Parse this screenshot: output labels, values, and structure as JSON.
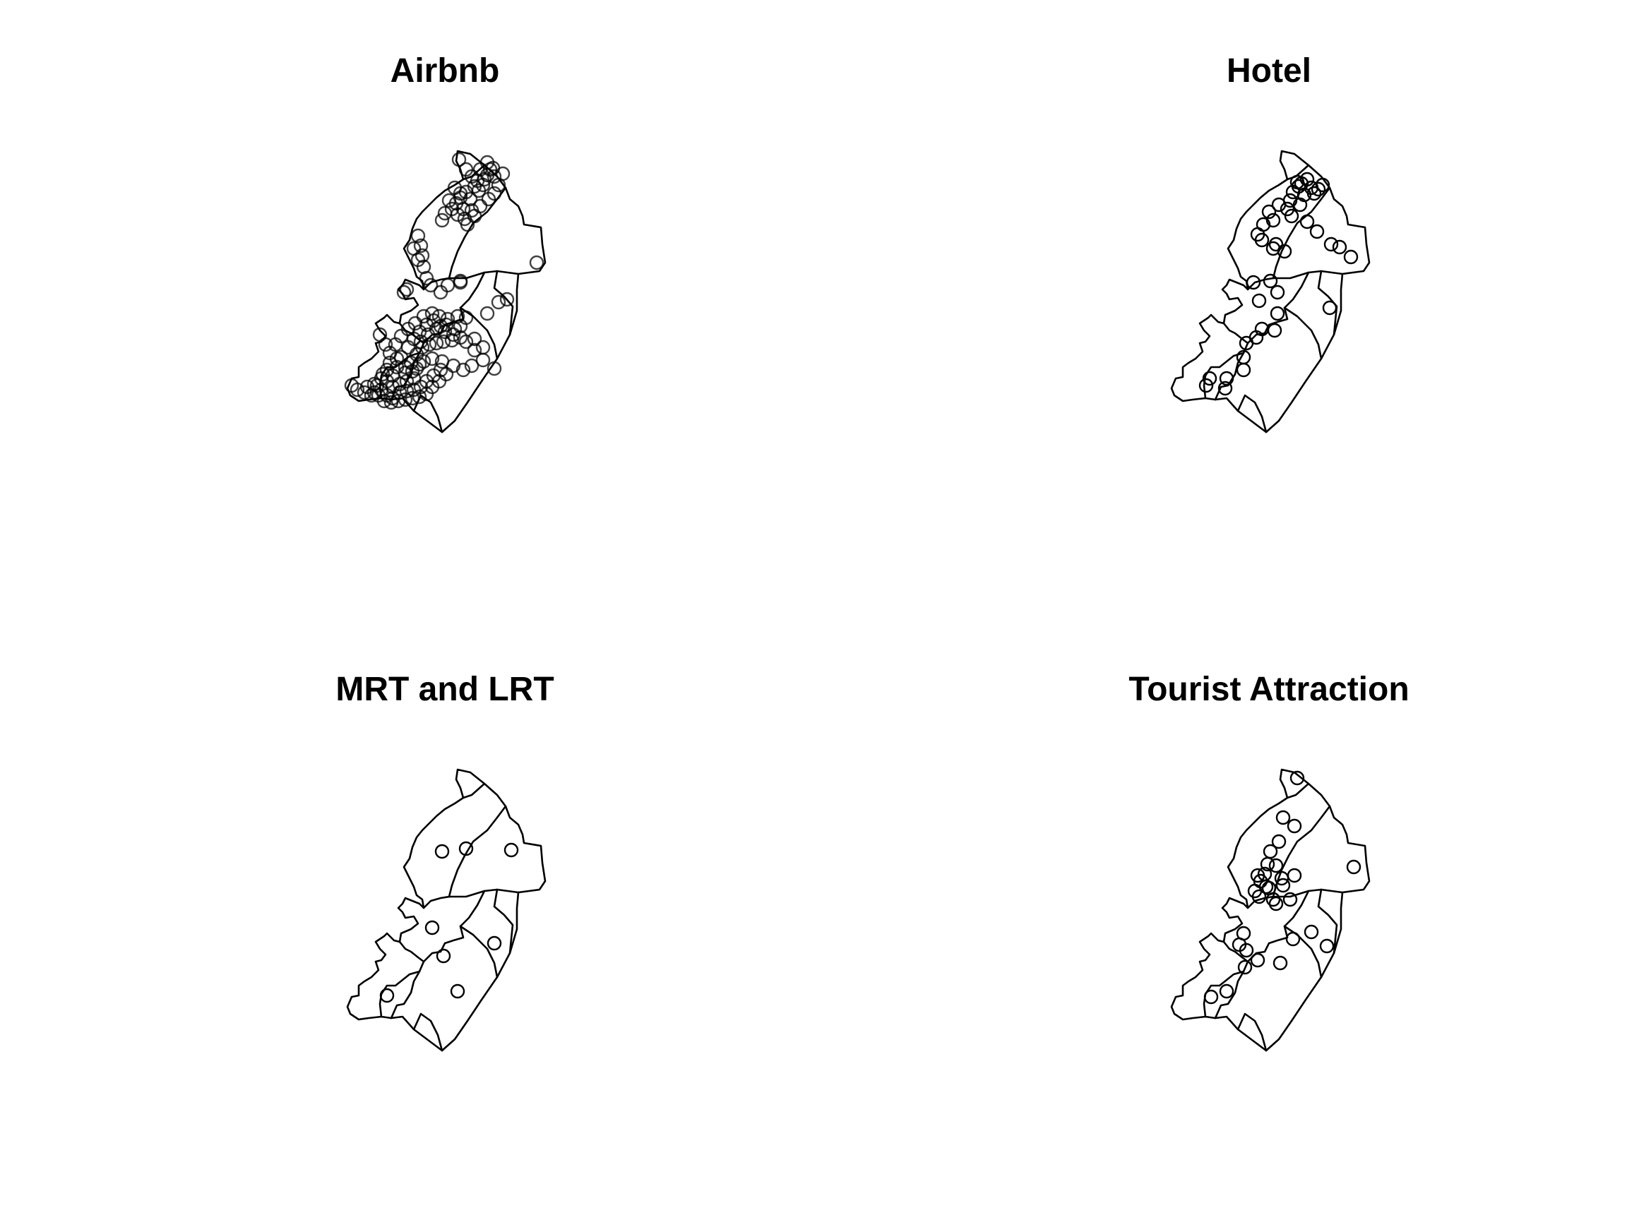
{
  "figure": {
    "panels": [
      {
        "id": "airbnb",
        "title": "Airbnb"
      },
      {
        "id": "hotel",
        "title": "Hotel"
      },
      {
        "id": "mrt",
        "title": "MRT and LRT"
      },
      {
        "id": "tourist",
        "title": "Tourist Attraction"
      }
    ]
  },
  "colors": {
    "background": "#ffffff",
    "ink": "#000000"
  },
  "map": {
    "features": "planning-area boundary polygons (shared across all panels)",
    "marker": "open-circle"
  }
}
